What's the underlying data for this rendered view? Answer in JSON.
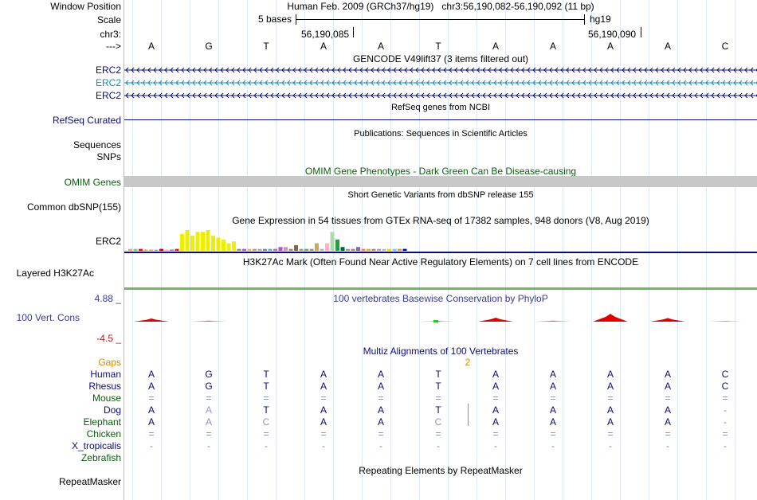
{
  "header": {
    "window_position_label": "Window Position",
    "window_position_value": "Human Feb. 2009 (GRCh37/hg19)   chr3:56,190,082-56,190,092 (11 bp)",
    "scale_label": "Scale",
    "scale_text": "5 bases",
    "assembly": "hg19",
    "chrom_label": "chr3:",
    "coord_left": "56,190,085",
    "coord_right": "56,190,090",
    "arrow_label": "--->"
  },
  "sequence": [
    "A",
    "G",
    "T",
    "A",
    "A",
    "T",
    "A",
    "A",
    "A",
    "A",
    "C"
  ],
  "tracks": {
    "gencode": {
      "title": "GENCODE V49lift37 (3 items filtered out)",
      "items": [
        {
          "label": "ERC2",
          "color": "#0c0c78"
        },
        {
          "label": "ERC2",
          "color": "#1a8ab8"
        },
        {
          "label": "ERC2",
          "color": "#0c0c78"
        }
      ]
    },
    "refseq": {
      "title": "RefSeq genes from NCBI",
      "label": "RefSeq Curated",
      "color": "#0c0c78"
    },
    "publications": {
      "title": "Publications: Sequences in Scientific Articles",
      "label_1": "Sequences",
      "label_2": "SNPs"
    },
    "omim": {
      "title": "OMIM Gene Phenotypes - Dark Green Can Be Disease-causing",
      "label": "OMIM Genes",
      "color": "#0b5d0b",
      "bar_color": "#c8c8c8"
    },
    "dbsnp": {
      "title": "Short Genetic Variants from dbSNP release 155",
      "label": "Common dbSNP(155)"
    },
    "gtex": {
      "title": "Gene Expression in 54 tissues from GTEx RNA-seq of 17382 samples, 948 donors (V8, Aug 2019)",
      "label": "ERC2",
      "values": [
        1,
        1,
        1,
        0,
        0,
        0,
        1,
        0,
        0,
        1,
        9,
        11,
        8,
        10,
        10,
        11,
        8,
        7,
        6,
        4,
        5,
        1,
        1,
        1,
        1,
        1,
        1,
        1,
        1,
        2,
        2,
        1,
        3,
        1,
        1,
        1,
        4,
        1,
        4,
        10,
        6,
        2,
        1,
        1,
        2,
        1,
        1,
        1,
        1,
        1,
        1,
        1,
        1,
        1
      ],
      "colors": [
        "#ff9966",
        "#66cc99",
        "#ee1111",
        "#ccaa55",
        "#ccaa55",
        "#aaaaaa",
        "#cc0000",
        "#ffaacc",
        "#aa66cc",
        "#ee1111",
        "#eeee00",
        "#eeee00",
        "#eeee00",
        "#eeee00",
        "#eeee00",
        "#eeee00",
        "#eeee00",
        "#eeee00",
        "#eeee00",
        "#eeee00",
        "#eeee00",
        "#aa8866",
        "#9966cc",
        "#ffaa66",
        "#cc9966",
        "#aaaaaa",
        "#888888",
        "#66aacc",
        "#cc66aa",
        "#aa55cc",
        "#cc99aa",
        "#998877",
        "#886644",
        "#99aa66",
        "#66aa66",
        "#aa9955",
        "#ccaa66",
        "#bbbb99",
        "#ffb3c6",
        "#aaddaa",
        "#11aa33",
        "#006633",
        "#aa9988",
        "#aa8877",
        "#8866aa",
        "#ff7755",
        "#ccaa55",
        "#bb8866",
        "#aaaaaa",
        "#bbbbbb",
        "#ffcc00",
        "#66ccff",
        "#cc9966",
        "#0000aa"
      ]
    },
    "h3k27ac": {
      "title": "H3K27Ac Mark (Often Found Near Active Regulatory Elements) on 7 cell lines from ENCODE",
      "label": "Layered H3K27Ac"
    },
    "phylop": {
      "title": "100 vertebrates Basewise Conservation by PhyloP",
      "label": "100 Vert. Cons",
      "max_label": "4.88 _",
      "min_label": "-4.5 _",
      "values": [
        0.9,
        0.3,
        0,
        0,
        0,
        0.2,
        1.1,
        0.3,
        2.2,
        1.0,
        0.2
      ]
    },
    "multiz": {
      "title": "Multiz Alignments of 100 Vertebrates",
      "gaps_label": "Gaps",
      "gap_count": "2",
      "species": [
        {
          "name": "Human",
          "bases": [
            "A",
            "G",
            "T",
            "A",
            "A",
            "T",
            "A",
            "A",
            "A",
            "A",
            "C"
          ]
        },
        {
          "name": "Rhesus",
          "bases": [
            "A",
            "G",
            "T",
            "A",
            "A",
            "T",
            "A",
            "A",
            "A",
            "A",
            "C"
          ]
        },
        {
          "name": "Mouse",
          "bases": [
            "=",
            "=",
            "=",
            "=",
            "=",
            "=",
            "=",
            "=",
            "=",
            "=",
            "="
          ]
        },
        {
          "name": "Dog",
          "bases": [
            "A",
            "A",
            "T",
            "A",
            "A",
            "T",
            "A",
            "A",
            "A",
            "A",
            "-"
          ]
        },
        {
          "name": "Elephant",
          "bases": [
            "A",
            "A",
            "C",
            "A",
            "A",
            "C",
            "A",
            "A",
            "A",
            "A",
            "-"
          ]
        },
        {
          "name": "Chicken",
          "bases": [
            "=",
            "=",
            "=",
            "=",
            "=",
            "=",
            "=",
            "=",
            "=",
            "=",
            "="
          ]
        },
        {
          "name": "X_tropicalis",
          "bases": [
            "-",
            "-",
            "-",
            "-",
            "-",
            "-",
            "-",
            "-",
            "-",
            "-",
            "-"
          ]
        },
        {
          "name": "Zebrafish",
          "bases": [
            "",
            "",
            "",
            "",
            "",
            "",
            "",
            "",
            "",
            "",
            ""
          ]
        }
      ]
    },
    "repeatmasker": {
      "title": "Repeating Elements by RepeatMasker",
      "label": "RepeatMasker"
    }
  },
  "colors": {
    "navy": "#0c0c78",
    "green": "#0b5d0b",
    "gaps": "#d98a00",
    "phylop_pos": "#0c0c78",
    "phylop_neg": "#b22222",
    "conserved_red": "#e00000"
  }
}
